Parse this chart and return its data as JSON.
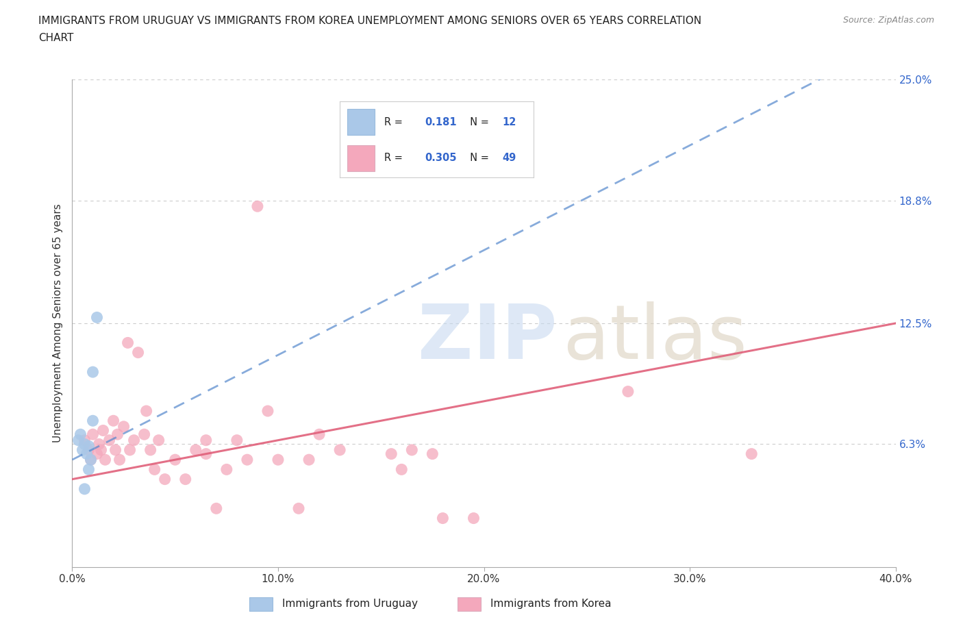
{
  "title_line1": "IMMIGRANTS FROM URUGUAY VS IMMIGRANTS FROM KOREA UNEMPLOYMENT AMONG SENIORS OVER 65 YEARS CORRELATION",
  "title_line2": "CHART",
  "source": "Source: ZipAtlas.com",
  "ylabel": "Unemployment Among Seniors over 65 years",
  "xlim": [
    0.0,
    0.4
  ],
  "ylim": [
    0.0,
    0.25
  ],
  "yticks": [
    0.063,
    0.125,
    0.188,
    0.25
  ],
  "ytick_labels": [
    "6.3%",
    "12.5%",
    "18.8%",
    "25.0%"
  ],
  "xticks": [
    0.0,
    0.1,
    0.2,
    0.3,
    0.4
  ],
  "xtick_labels": [
    "0.0%",
    "10.0%",
    "20.0%",
    "30.0%",
    "40.0%"
  ],
  "grid_color": "#cccccc",
  "background_color": "#ffffff",
  "uruguay_color": "#aac8e8",
  "korea_color": "#f4a8bc",
  "uruguay_line_color": "#5588cc",
  "korea_line_color": "#e0607a",
  "uruguay_R": 0.181,
  "uruguay_N": 12,
  "korea_R": 0.305,
  "korea_N": 49,
  "legend_R_color": "#3366cc",
  "uruguay_scatter": [
    [
      0.003,
      0.065
    ],
    [
      0.004,
      0.068
    ],
    [
      0.005,
      0.06
    ],
    [
      0.006,
      0.063
    ],
    [
      0.007,
      0.058
    ],
    [
      0.008,
      0.062
    ],
    [
      0.009,
      0.055
    ],
    [
      0.01,
      0.075
    ],
    [
      0.01,
      0.1
    ],
    [
      0.012,
      0.128
    ],
    [
      0.008,
      0.05
    ],
    [
      0.006,
      0.04
    ]
  ],
  "korea_scatter": [
    [
      0.006,
      0.065
    ],
    [
      0.008,
      0.06
    ],
    [
      0.009,
      0.055
    ],
    [
      0.01,
      0.068
    ],
    [
      0.012,
      0.058
    ],
    [
      0.013,
      0.063
    ],
    [
      0.014,
      0.06
    ],
    [
      0.015,
      0.07
    ],
    [
      0.016,
      0.055
    ],
    [
      0.018,
      0.065
    ],
    [
      0.02,
      0.075
    ],
    [
      0.021,
      0.06
    ],
    [
      0.022,
      0.068
    ],
    [
      0.023,
      0.055
    ],
    [
      0.025,
      0.072
    ],
    [
      0.027,
      0.115
    ],
    [
      0.028,
      0.06
    ],
    [
      0.03,
      0.065
    ],
    [
      0.032,
      0.11
    ],
    [
      0.035,
      0.068
    ],
    [
      0.036,
      0.08
    ],
    [
      0.038,
      0.06
    ],
    [
      0.04,
      0.05
    ],
    [
      0.042,
      0.065
    ],
    [
      0.045,
      0.045
    ],
    [
      0.05,
      0.055
    ],
    [
      0.055,
      0.045
    ],
    [
      0.06,
      0.06
    ],
    [
      0.065,
      0.065
    ],
    [
      0.065,
      0.058
    ],
    [
      0.07,
      0.03
    ],
    [
      0.075,
      0.05
    ],
    [
      0.08,
      0.065
    ],
    [
      0.085,
      0.055
    ],
    [
      0.09,
      0.185
    ],
    [
      0.095,
      0.08
    ],
    [
      0.1,
      0.055
    ],
    [
      0.11,
      0.03
    ],
    [
      0.115,
      0.055
    ],
    [
      0.12,
      0.068
    ],
    [
      0.13,
      0.06
    ],
    [
      0.155,
      0.058
    ],
    [
      0.16,
      0.05
    ],
    [
      0.165,
      0.06
    ],
    [
      0.175,
      0.058
    ],
    [
      0.18,
      0.025
    ],
    [
      0.195,
      0.025
    ],
    [
      0.27,
      0.09
    ],
    [
      0.33,
      0.058
    ]
  ]
}
